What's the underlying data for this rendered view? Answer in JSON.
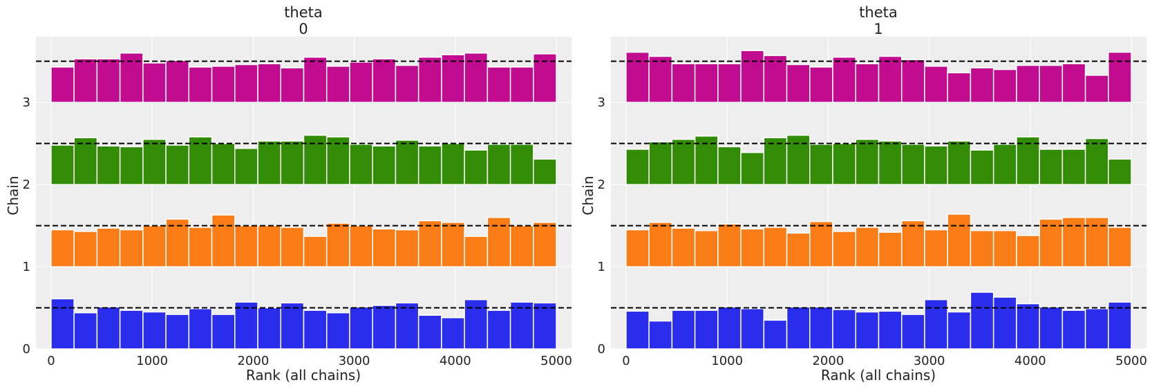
{
  "chart_data": [
    {
      "type": "rank_histogram",
      "title_line1": "theta",
      "title_line2": "0",
      "xlabel": "Rank (all chains)",
      "ylabel": "Chain",
      "xlim": [
        -150,
        5150
      ],
      "ylim": [
        0,
        3.8
      ],
      "xticks": [
        0,
        1000,
        2000,
        3000,
        4000,
        5000
      ],
      "xtick_labels": [
        "0",
        "1000",
        "2000",
        "3000",
        "4000",
        "5000"
      ],
      "yticks": [
        0,
        1,
        2,
        3
      ],
      "ytick_labels": [
        "0",
        "1",
        "2",
        "3"
      ],
      "bin_edges": [
        0,
        227.3,
        454.5,
        681.8,
        909.1,
        1136.4,
        1363.6,
        1590.9,
        1818.2,
        2045.5,
        2272.7,
        2500,
        2727.3,
        2954.5,
        3181.8,
        3409.1,
        3636.4,
        3863.6,
        4090.9,
        4318.2,
        4545.5,
        4772.7,
        5000
      ],
      "reference_heights": [
        0.5,
        0.5,
        0.5,
        0.5
      ],
      "series": [
        {
          "name": "chain 0",
          "offset": 0,
          "color": "#2a2eec",
          "heights": [
            0.61,
            0.44,
            0.51,
            0.47,
            0.45,
            0.42,
            0.49,
            0.42,
            0.57,
            0.5,
            0.56,
            0.47,
            0.44,
            0.51,
            0.53,
            0.56,
            0.41,
            0.38,
            0.6,
            0.47,
            0.57,
            0.56
          ]
        },
        {
          "name": "chain 1",
          "offset": 1,
          "color": "#fa7c17",
          "heights": [
            0.45,
            0.43,
            0.47,
            0.45,
            0.5,
            0.58,
            0.48,
            0.63,
            0.5,
            0.5,
            0.48,
            0.37,
            0.53,
            0.5,
            0.46,
            0.45,
            0.56,
            0.54,
            0.37,
            0.6,
            0.5,
            0.54
          ]
        },
        {
          "name": "chain 2",
          "offset": 2,
          "color": "#328c06",
          "heights": [
            0.48,
            0.57,
            0.47,
            0.46,
            0.55,
            0.48,
            0.58,
            0.5,
            0.44,
            0.53,
            0.53,
            0.6,
            0.58,
            0.49,
            0.47,
            0.54,
            0.47,
            0.5,
            0.42,
            0.49,
            0.49,
            0.31
          ]
        },
        {
          "name": "chain 3",
          "offset": 3,
          "color": "#c10c90",
          "heights": [
            0.43,
            0.53,
            0.53,
            0.6,
            0.48,
            0.51,
            0.43,
            0.44,
            0.46,
            0.47,
            0.42,
            0.55,
            0.44,
            0.49,
            0.53,
            0.45,
            0.55,
            0.58,
            0.6,
            0.43,
            0.43,
            0.59
          ]
        }
      ]
    },
    {
      "type": "rank_histogram",
      "title_line1": "theta",
      "title_line2": "1",
      "xlabel": "Rank (all chains)",
      "ylabel": "Chain",
      "xlim": [
        -150,
        5150
      ],
      "ylim": [
        0,
        3.8
      ],
      "xticks": [
        0,
        1000,
        2000,
        3000,
        4000,
        5000
      ],
      "xtick_labels": [
        "0",
        "1000",
        "2000",
        "3000",
        "4000",
        "5000"
      ],
      "yticks": [
        0,
        1,
        2,
        3
      ],
      "ytick_labels": [
        "0",
        "1",
        "2",
        "3"
      ],
      "bin_edges": [
        0,
        227.3,
        454.5,
        681.8,
        909.1,
        1136.4,
        1363.6,
        1590.9,
        1818.2,
        2045.5,
        2272.7,
        2500,
        2727.3,
        2954.5,
        3181.8,
        3409.1,
        3636.4,
        3863.6,
        4090.9,
        4318.2,
        4545.5,
        4772.7,
        5000
      ],
      "reference_heights": [
        0.5,
        0.5,
        0.5,
        0.5
      ],
      "series": [
        {
          "name": "chain 0",
          "offset": 0,
          "color": "#2a2eec",
          "heights": [
            0.46,
            0.34,
            0.47,
            0.47,
            0.51,
            0.49,
            0.35,
            0.51,
            0.51,
            0.48,
            0.45,
            0.46,
            0.42,
            0.6,
            0.45,
            0.69,
            0.63,
            0.55,
            0.51,
            0.47,
            0.49,
            0.57
          ]
        },
        {
          "name": "chain 1",
          "offset": 1,
          "color": "#fa7c17",
          "heights": [
            0.45,
            0.54,
            0.47,
            0.44,
            0.52,
            0.46,
            0.48,
            0.41,
            0.55,
            0.43,
            0.48,
            0.42,
            0.56,
            0.45,
            0.64,
            0.44,
            0.44,
            0.38,
            0.58,
            0.6,
            0.6,
            0.48
          ]
        },
        {
          "name": "chain 2",
          "offset": 2,
          "color": "#328c06",
          "heights": [
            0.43,
            0.52,
            0.55,
            0.59,
            0.46,
            0.39,
            0.57,
            0.6,
            0.49,
            0.5,
            0.55,
            0.53,
            0.49,
            0.47,
            0.53,
            0.42,
            0.49,
            0.58,
            0.43,
            0.43,
            0.56,
            0.31
          ]
        },
        {
          "name": "chain 3",
          "offset": 3,
          "color": "#c10c90",
          "heights": [
            0.61,
            0.56,
            0.47,
            0.47,
            0.47,
            0.63,
            0.57,
            0.46,
            0.43,
            0.55,
            0.47,
            0.56,
            0.52,
            0.44,
            0.36,
            0.42,
            0.4,
            0.45,
            0.45,
            0.47,
            0.33,
            0.61
          ]
        }
      ]
    }
  ]
}
